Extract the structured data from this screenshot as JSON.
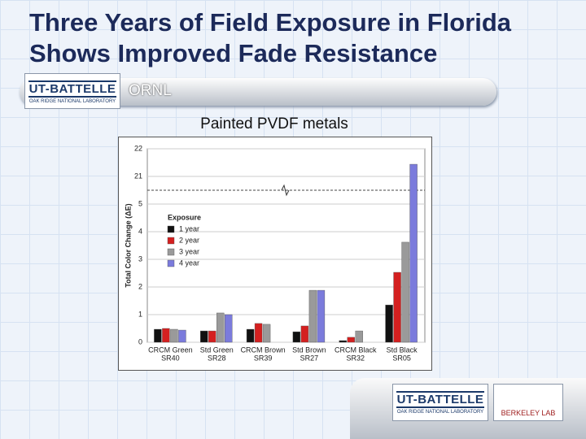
{
  "slide": {
    "title_lines": [
      "Three Years of Field Exposure in Florida",
      "Shows Improved Fade Resistance"
    ],
    "header_label": "ORNL",
    "logo_top": {
      "name": "UT-BATTELLE",
      "subtitle": "Oak Ridge National Laboratory"
    },
    "logo_bottom": {
      "name": "UT-BATTELLE",
      "subtitle": "Oak Ridge National Laboratory",
      "partner": "Berkeley Lab"
    }
  },
  "chart_data": {
    "type": "bar",
    "title": "Painted PVDF metals",
    "y_label": "Total Color Change (ΔE)",
    "categories": [
      "CRCM Green",
      "Std Green",
      "CRCM Brown",
      "Std Brown",
      "CRCM Black",
      "Std Black"
    ],
    "category_codes": [
      "SR40",
      "SR28",
      "SR39",
      "SR27",
      "SR32",
      "SR05"
    ],
    "legend_title": "Exposure",
    "series": [
      {
        "name": "1 year",
        "color": "#111111",
        "values": [
          0.47,
          0.41,
          0.47,
          0.38,
          0.06,
          1.35
        ]
      },
      {
        "name": "2 year",
        "color": "#d42020",
        "values": [
          0.5,
          0.41,
          0.68,
          0.59,
          0.18,
          2.53
        ]
      },
      {
        "name": "3 year",
        "color": "#9a9a9a",
        "values": [
          0.47,
          1.06,
          0.65,
          1.88,
          0.41,
          3.62
        ]
      },
      {
        "name": "4 year",
        "color": "#7b7bdc",
        "values": [
          0.44,
          1.0,
          null,
          1.88,
          null,
          21.44
        ]
      }
    ],
    "ylim": [
      0,
      22
    ],
    "yticks": [
      0,
      1,
      2,
      3,
      4,
      5,
      21,
      22
    ],
    "grid": true
  }
}
